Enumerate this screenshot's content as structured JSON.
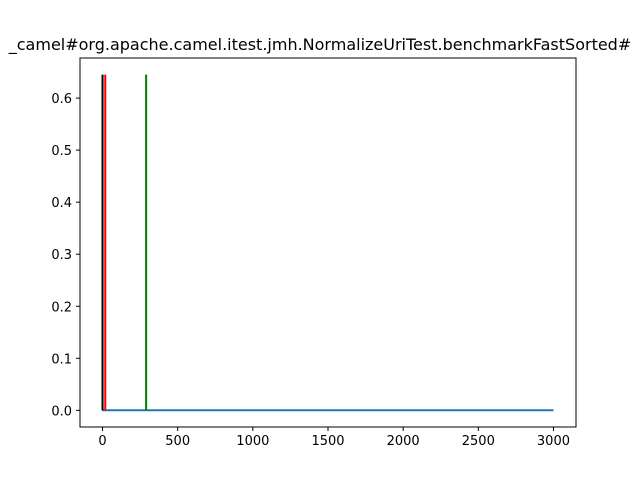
{
  "chart_data": {
    "type": "line",
    "title": "_camel#org.apache.camel.itest.jmh.NormalizeUriTest.benchmarkFastSorted#",
    "xlabel": "",
    "ylabel": "",
    "xlim": [
      -150,
      3150
    ],
    "ylim": [
      -0.032,
      0.677
    ],
    "x_ticks": [
      0,
      500,
      1000,
      1500,
      2000,
      2500,
      3000
    ],
    "x_tick_labels": [
      "0",
      "500",
      "1000",
      "1500",
      "2000",
      "2500",
      "3000"
    ],
    "y_ticks": [
      0.0,
      0.1,
      0.2,
      0.3,
      0.4,
      0.5,
      0.6
    ],
    "y_tick_labels": [
      "0.0",
      "0.1",
      "0.2",
      "0.3",
      "0.4",
      "0.5",
      "0.6"
    ],
    "grid": false,
    "series": [
      {
        "color": "#1f77b4",
        "x": [
          0,
          3000
        ],
        "y": [
          0.0,
          0.0
        ]
      }
    ],
    "vlines": [
      {
        "x": 0,
        "ymin": 0.0,
        "ymax": 0.645,
        "color": "#000000"
      },
      {
        "x": 18,
        "ymin": 0.0,
        "ymax": 0.645,
        "color": "#ff0000"
      },
      {
        "x": 290,
        "ymin": 0.0,
        "ymax": 0.645,
        "color": "#008000"
      }
    ]
  }
}
